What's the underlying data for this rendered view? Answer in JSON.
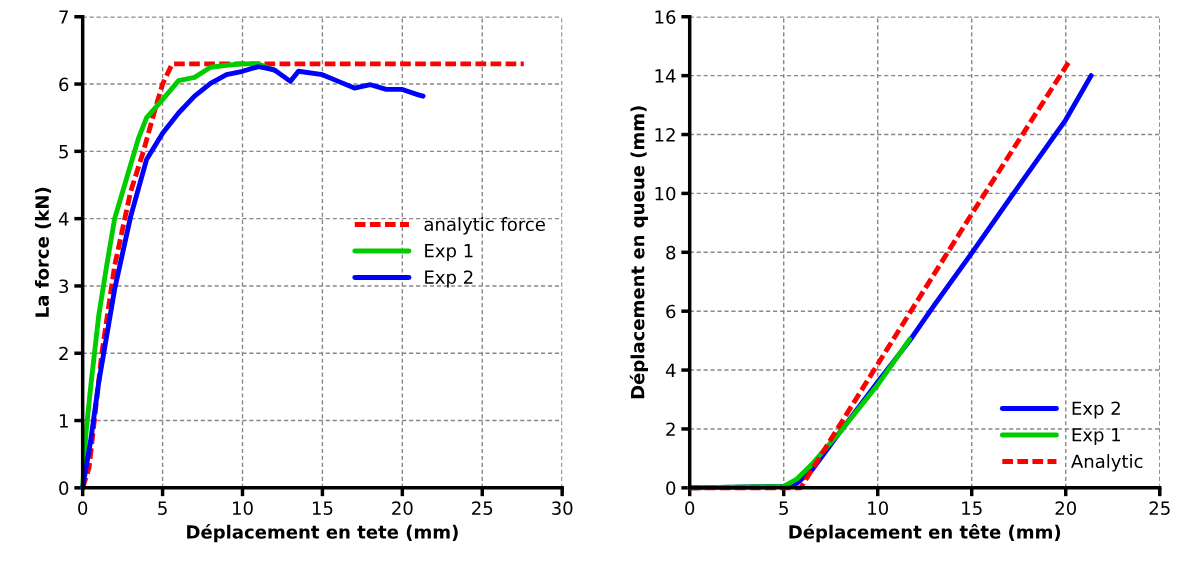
{
  "chart_data": [
    {
      "type": "line",
      "xlabel": "Déplacement en tete (mm)",
      "ylabel": "La force (kN)",
      "xlim": [
        0,
        30
      ],
      "xticks": [
        0,
        5,
        10,
        15,
        20,
        25,
        30
      ],
      "ylim": [
        0,
        7
      ],
      "yticks": [
        0,
        1,
        2,
        3,
        4,
        5,
        6,
        7
      ],
      "grid": true,
      "legend": "right",
      "marker": "none",
      "series": [
        {
          "name": "analytic force",
          "color": "#ff0000",
          "line_style": "dashed",
          "x": [
            0,
            0.4,
            1.2,
            2,
            3,
            3.8,
            4.5,
            5,
            5.6,
            27.6
          ],
          "values": [
            0,
            0.3,
            2,
            3.3,
            4.4,
            5,
            5.6,
            6,
            6.3,
            6.3
          ]
        },
        {
          "name": "Exp 1",
          "color": "#00cc00",
          "line_style": "solid",
          "x": [
            0,
            0.2,
            0.5,
            1,
            1.5,
            2,
            2.5,
            3,
            3.5,
            4,
            5,
            6,
            7,
            8,
            9,
            10,
            11,
            12
          ],
          "values": [
            0,
            0.8,
            1.5,
            2.55,
            3.3,
            4.0,
            4.4,
            4.8,
            5.2,
            5.5,
            5.77,
            6.05,
            6.1,
            6.25,
            6.28,
            6.3,
            6.3,
            6.2
          ]
        },
        {
          "name": "Exp 2",
          "color": "#0000ff",
          "line_style": "solid",
          "x": [
            0,
            0.5,
            1,
            2,
            3,
            4,
            5,
            6,
            7,
            8,
            9,
            10,
            11,
            12,
            13,
            13.5,
            15,
            16,
            17,
            18,
            19,
            20,
            21,
            21.3
          ],
          "values": [
            0,
            0.7,
            1.56,
            2.95,
            4.03,
            4.88,
            5.27,
            5.57,
            5.82,
            6.01,
            6.14,
            6.19,
            6.26,
            6.21,
            6.04,
            6.19,
            6.14,
            6.04,
            5.94,
            5.99,
            5.92,
            5.92,
            5.84,
            5.82
          ]
        }
      ]
    },
    {
      "type": "line",
      "xlabel": "Déplacement en tête (mm)",
      "ylabel": "Déplacement en queue (mm)",
      "xlim": [
        0,
        25
      ],
      "xticks": [
        0,
        5,
        10,
        15,
        20,
        25
      ],
      "ylim": [
        0,
        16
      ],
      "yticks": [
        0,
        2,
        4,
        6,
        8,
        10,
        12,
        14,
        16
      ],
      "grid": true,
      "legend": "lower right",
      "marker": "none",
      "series": [
        {
          "name": "Exp 2",
          "color": "#0000ff",
          "line_style": "solid",
          "x": [
            0,
            5.5,
            6.5,
            8,
            10,
            11.7,
            13,
            15,
            17,
            20,
            21.35
          ],
          "values": [
            0,
            0.05,
            0.6,
            1.9,
            3.6,
            5.0,
            6.2,
            7.97,
            9.8,
            12.5,
            14.0
          ]
        },
        {
          "name": "Exp 1",
          "color": "#00cc00",
          "line_style": "solid",
          "x": [
            0,
            5,
            5.7,
            6.5,
            8,
            10,
            11.7
          ],
          "values": [
            0,
            0.05,
            0.3,
            0.8,
            1.9,
            3.5,
            5.05
          ]
        },
        {
          "name": "Analytic",
          "color": "#ff0000",
          "line_style": "dashed",
          "x": [
            0,
            5.9,
            10,
            15,
            20.2
          ],
          "values": [
            0,
            0,
            4.2,
            9.3,
            14.5
          ]
        }
      ]
    }
  ]
}
